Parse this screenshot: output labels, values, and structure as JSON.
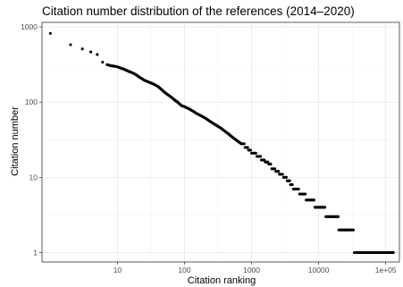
{
  "chart_data": {
    "type": "scatter",
    "title": "Citation number distribution of the references (2014–2020)",
    "xlabel": "Citation ranking",
    "ylabel": "Citation number",
    "x_scale": "log10",
    "y_scale": "log10",
    "xlim": [
      0.75,
      160000
    ],
    "ylim": [
      0.75,
      1150
    ],
    "grid": true,
    "legend": "none",
    "x_ticks": [
      {
        "value": 10,
        "label": "10"
      },
      {
        "value": 100,
        "label": "100"
      },
      {
        "value": 1000,
        "label": "1000"
      },
      {
        "value": 10000,
        "label": "10000"
      },
      {
        "value": 100000,
        "label": "1e+05"
      }
    ],
    "y_ticks": [
      {
        "value": 1,
        "label": "1"
      },
      {
        "value": 10,
        "label": "10"
      },
      {
        "value": 100,
        "label": "100"
      },
      {
        "value": 1000,
        "label": "1000"
      }
    ],
    "marker_color": "#000000",
    "series": [
      {
        "x": [
          1,
          2,
          3,
          4,
          5,
          6,
          7,
          8,
          9,
          10,
          11,
          12,
          13,
          14,
          15,
          17,
          19,
          21,
          23,
          25,
          28,
          31,
          35,
          40,
          45,
          50,
          56,
          63,
          70,
          80,
          90,
          100,
          115,
          130,
          150,
          170,
          200,
          230,
          260,
          300,
          350,
          400,
          450,
          500,
          600,
          700,
          800,
          900,
          1000,
          1200,
          1400,
          1600,
          1800,
          2000,
          2300,
          2600,
          3000,
          3400,
          3800,
          4200,
          4700,
          5200,
          5800,
          6500,
          7200,
          8000,
          8800,
          9700,
          10600,
          11600,
          12800,
          14000,
          15500,
          17000,
          18500,
          20000,
          22000,
          24000,
          26000,
          28000,
          31000,
          34000,
          37000,
          41000,
          46000,
          52000,
          60000,
          70000,
          80000,
          90000,
          100000,
          110000,
          120000,
          130000
        ],
        "y": [
          820,
          580,
          510,
          465,
          430,
          340,
          315,
          305,
          300,
          295,
          285,
          278,
          270,
          262,
          255,
          244,
          231,
          216,
          206,
          196,
          188,
          181,
          173,
          162,
          148,
          136,
          126,
          117,
          108,
          99,
          90,
          87,
          82,
          77,
          71,
          67,
          62,
          57,
          53,
          49,
          45,
          41,
          38,
          35,
          31,
          28,
          25,
          23,
          21,
          19,
          17,
          16,
          15,
          13,
          12,
          11,
          10,
          9,
          8,
          7,
          7,
          6,
          6,
          5,
          5,
          5,
          4,
          4,
          4,
          4,
          3,
          3,
          3,
          3,
          3,
          2,
          2,
          2,
          2,
          2,
          2,
          1,
          1,
          1,
          1,
          1,
          1,
          1,
          1,
          1,
          1,
          1,
          1,
          1
        ]
      }
    ]
  }
}
